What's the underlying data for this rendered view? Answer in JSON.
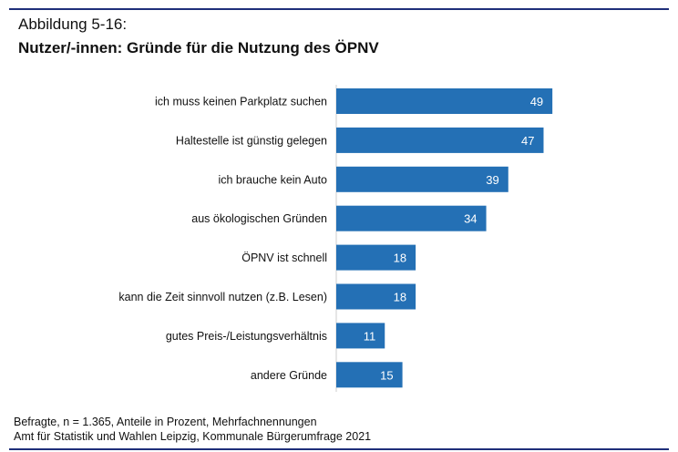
{
  "figure_label": "Abbildung 5-16:",
  "chart_data": {
    "type": "bar",
    "orientation": "horizontal",
    "title": "Nutzer/-innen: Gründe für die Nutzung des ÖPNV",
    "categories": [
      "ich muss keinen Parkplatz suchen",
      "Haltestelle ist günstig gelegen",
      "ich brauche kein Auto",
      "aus ökologischen Gründen",
      "ÖPNV ist schnell",
      "kann die Zeit sinnvoll nutzen (z.B. Lesen)",
      "gutes Preis-/Leistungsverhältnis",
      "andere Gründe"
    ],
    "values": [
      49,
      47,
      39,
      34,
      18,
      18,
      11,
      15
    ],
    "unit": "Prozent",
    "data_labels": true,
    "grid": false,
    "bar_color": "#2470b5"
  },
  "footnote": {
    "line1": "Befragte, n = 1.365, Anteile in Prozent, Mehrfachnennungen",
    "line2": "Amt für Statistik und Wahlen Leipzig, Kommunale Bürgerumfrage 2021"
  }
}
